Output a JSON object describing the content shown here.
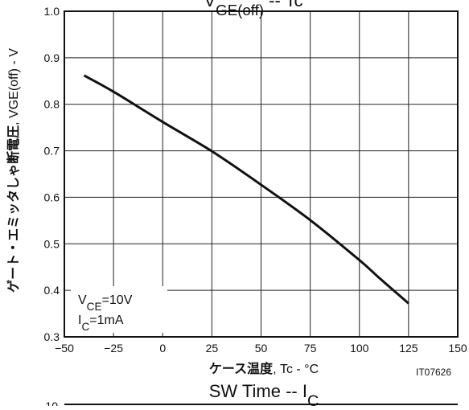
{
  "chart_data": [
    {
      "type": "line",
      "title_partial": "VGE(off) -- Tc",
      "xlabel": {
        "bold": "ケース温度",
        "rest": ", Tc - °C"
      },
      "ylabel": {
        "bold": "ゲート・エミッタしゃ断電圧",
        "rest": ", VGE(off) - V"
      },
      "x_ticks": [
        "−50",
        "−25",
        "0",
        "25",
        "50",
        "75",
        "100",
        "125",
        "150"
      ],
      "y_ticks": [
        "0.3",
        "0.4",
        "0.5",
        "0.6",
        "0.7",
        "0.8",
        "0.9",
        "1.0"
      ],
      "xlim": [
        -50,
        150
      ],
      "ylim": [
        0.3,
        1.0
      ],
      "grid": true,
      "series": [
        {
          "x": [
            -40,
            -25,
            0,
            25,
            50,
            75,
            100,
            110,
            125
          ],
          "y": [
            0.862,
            0.827,
            0.762,
            0.699,
            0.627,
            0.551,
            0.465,
            0.427,
            0.372
          ]
        }
      ],
      "annotations": {
        "vce": "VCE=10V",
        "ic": "IC=1mA"
      },
      "figure_id": "IT07626"
    },
    {
      "type": "line",
      "title": "SW Time -- IC",
      "y_tick_partial": "10"
    }
  ]
}
